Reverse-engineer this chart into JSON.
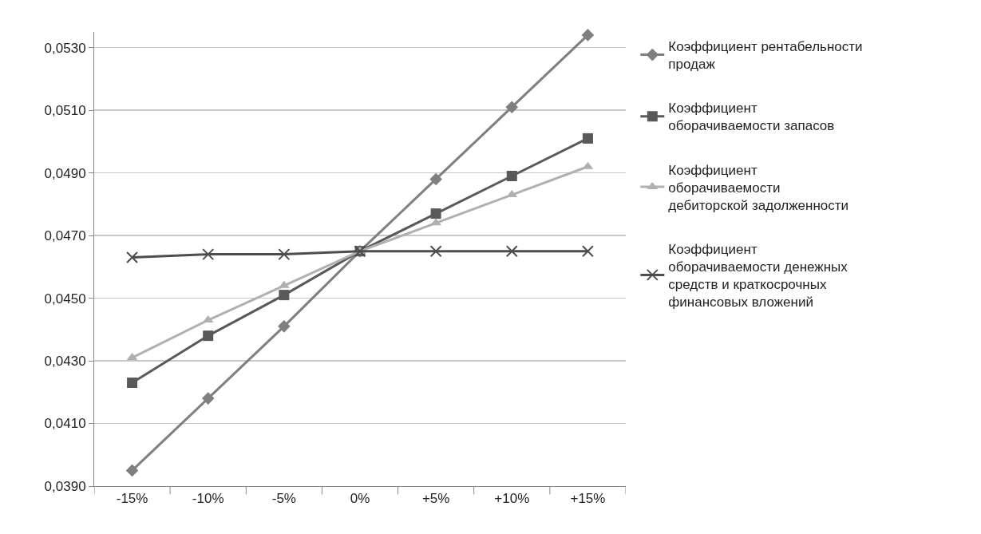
{
  "chart_data": {
    "type": "line",
    "categories": [
      "-15%",
      "-10%",
      "-5%",
      "0%",
      "+5%",
      "+10%",
      "+15%"
    ],
    "ylim": [
      0.039,
      0.0535
    ],
    "yticks": [
      {
        "value": 0.039,
        "label": "0,0390"
      },
      {
        "value": 0.041,
        "label": "0,0410"
      },
      {
        "value": 0.043,
        "label": "0,0430"
      },
      {
        "value": 0.045,
        "label": "0,0450"
      },
      {
        "value": 0.047,
        "label": "0,0470"
      },
      {
        "value": 0.049,
        "label": "0,0490"
      },
      {
        "value": 0.051,
        "label": "0,0510"
      },
      {
        "value": 0.053,
        "label": "0,0530"
      }
    ],
    "grid": "y",
    "legend": "right",
    "line_style": "solid",
    "series": [
      {
        "name": "Коэффициент рентабельности продаж",
        "color": "#7f7f7f",
        "marker": "diamond",
        "values": [
          0.0395,
          0.0418,
          0.0441,
          0.0465,
          0.0488,
          0.0511,
          0.0534
        ]
      },
      {
        "name": "Коэффициент оборачиваемости запасов",
        "color": "#595959",
        "marker": "square",
        "values": [
          0.0423,
          0.0438,
          0.0451,
          0.0465,
          0.0477,
          0.0489,
          0.0501
        ]
      },
      {
        "name": "Коэффициент оборачиваемости дебиторской задолженности",
        "color": "#b0b0b0",
        "marker": "triangle",
        "values": [
          0.0431,
          0.0443,
          0.0454,
          0.0465,
          0.0474,
          0.0483,
          0.0492
        ]
      },
      {
        "name": "Коэффициент оборачиваемости денежных средств и краткосрочных финансовых вложений",
        "color": "#4d4d4d",
        "marker": "cross",
        "values": [
          0.0463,
          0.0464,
          0.0464,
          0.0465,
          0.0465,
          0.0465,
          0.0465
        ]
      }
    ]
  }
}
